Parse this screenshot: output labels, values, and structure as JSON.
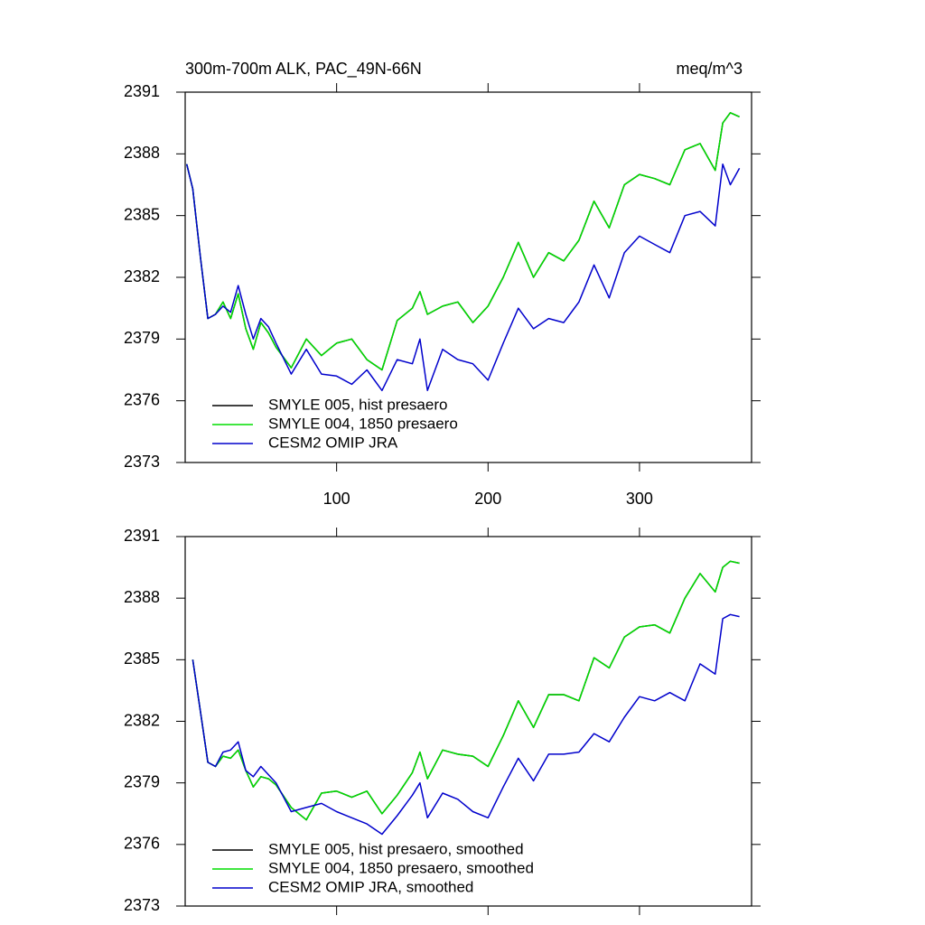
{
  "chart_data": [
    {
      "type": "line",
      "title": "300m-700m ALK, PAC_49N-66N",
      "units": "meq/m^3",
      "x": [
        1,
        5,
        10,
        15,
        20,
        25,
        30,
        35,
        40,
        45,
        50,
        55,
        60,
        70,
        80,
        90,
        100,
        110,
        120,
        130,
        140,
        150,
        155,
        160,
        170,
        180,
        190,
        200,
        210,
        220,
        230,
        240,
        250,
        260,
        270,
        280,
        290,
        300,
        310,
        320,
        330,
        340,
        350,
        355,
        360,
        366
      ],
      "series": [
        {
          "name": "SMYLE 005, hist presaero",
          "color": "#000000",
          "values": [
            2387.5,
            2386.3,
            2383,
            2380,
            2380.2,
            2380.8,
            2380.0,
            2381.2,
            2379.5,
            2378.5,
            2379.8,
            2379.3,
            2378.6,
            2377.6,
            2379.0,
            2378.2,
            2378.8,
            2379.0,
            2378.0,
            2377.5,
            2379.9,
            2380.5,
            2381.3,
            2380.2,
            2380.6,
            2380.8,
            2379.8,
            2380.6,
            2382.0,
            2383.7,
            2382.0,
            2383.2,
            2382.8,
            2383.8,
            2385.7,
            2384.4,
            2386.5,
            2387.0,
            2386.8,
            2386.5,
            2388.2,
            2388.5,
            2387.2,
            2389.5,
            2390.0,
            2389.8
          ]
        },
        {
          "name": "SMYLE 004, 1850 presaero",
          "color": "#00dd00",
          "values": [
            2387.5,
            2386.3,
            2383,
            2380,
            2380.2,
            2380.8,
            2380.0,
            2381.2,
            2379.5,
            2378.5,
            2379.8,
            2379.3,
            2378.6,
            2377.6,
            2379.0,
            2378.2,
            2378.8,
            2379.0,
            2378.0,
            2377.5,
            2379.9,
            2380.5,
            2381.3,
            2380.2,
            2380.6,
            2380.8,
            2379.8,
            2380.6,
            2382.0,
            2383.7,
            2382.0,
            2383.2,
            2382.8,
            2383.8,
            2385.7,
            2384.4,
            2386.5,
            2387.0,
            2386.8,
            2386.5,
            2388.2,
            2388.5,
            2387.2,
            2389.5,
            2390.0,
            2389.8
          ]
        },
        {
          "name": "CESM2 OMIP JRA",
          "color": "#0000cc",
          "values": [
            2387.5,
            2386.3,
            2383,
            2380,
            2380.2,
            2380.6,
            2380.3,
            2381.6,
            2380.2,
            2379.0,
            2380.0,
            2379.6,
            2378.8,
            2377.3,
            2378.5,
            2377.3,
            2377.2,
            2376.8,
            2377.5,
            2376.5,
            2378.0,
            2377.8,
            2379.0,
            2376.5,
            2378.5,
            2378.0,
            2377.8,
            2377.0,
            2378.8,
            2380.5,
            2379.5,
            2380.0,
            2379.8,
            2380.8,
            2382.6,
            2381.0,
            2383.2,
            2384.0,
            2383.6,
            2383.2,
            2385.0,
            2385.2,
            2384.5,
            2387.5,
            2386.5,
            2387.3
          ]
        }
      ],
      "xlim": [
        0,
        374
      ],
      "ylim": [
        2373,
        2391
      ],
      "xticks": [
        100,
        200,
        300
      ],
      "yticks": [
        2373,
        2376,
        2379,
        2382,
        2385,
        2388,
        2391
      ]
    },
    {
      "type": "line",
      "x": [
        5,
        10,
        15,
        20,
        25,
        30,
        35,
        40,
        45,
        50,
        55,
        60,
        70,
        80,
        90,
        100,
        110,
        120,
        130,
        140,
        150,
        155,
        160,
        170,
        180,
        190,
        200,
        210,
        220,
        230,
        240,
        250,
        260,
        270,
        280,
        290,
        300,
        310,
        320,
        330,
        340,
        350,
        355,
        360,
        366
      ],
      "series": [
        {
          "name": "SMYLE 005, hist presaero, smoothed",
          "color": "#000000",
          "values": [
            2385,
            2382.5,
            2380.0,
            2379.8,
            2380.3,
            2380.2,
            2380.6,
            2379.6,
            2378.8,
            2379.3,
            2379.2,
            2378.9,
            2377.8,
            2377.2,
            2378.5,
            2378.6,
            2378.3,
            2378.6,
            2377.5,
            2378.4,
            2379.5,
            2380.5,
            2379.2,
            2380.6,
            2380.4,
            2380.3,
            2379.8,
            2381.3,
            2383.0,
            2381.7,
            2383.3,
            2383.3,
            2383.0,
            2385.1,
            2384.6,
            2386.1,
            2386.6,
            2386.7,
            2386.3,
            2388.0,
            2389.2,
            2388.3,
            2389.5,
            2389.8,
            2389.7
          ]
        },
        {
          "name": "SMYLE 004, 1850 presaero, smoothed",
          "color": "#00dd00",
          "values": [
            2385,
            2382.5,
            2380.0,
            2379.8,
            2380.3,
            2380.2,
            2380.6,
            2379.6,
            2378.8,
            2379.3,
            2379.2,
            2378.9,
            2377.8,
            2377.2,
            2378.5,
            2378.6,
            2378.3,
            2378.6,
            2377.5,
            2378.4,
            2379.5,
            2380.5,
            2379.2,
            2380.6,
            2380.4,
            2380.3,
            2379.8,
            2381.3,
            2383.0,
            2381.7,
            2383.3,
            2383.3,
            2383.0,
            2385.1,
            2384.6,
            2386.1,
            2386.6,
            2386.7,
            2386.3,
            2388.0,
            2389.2,
            2388.3,
            2389.5,
            2389.8,
            2389.7
          ]
        },
        {
          "name": "CESM2 OMIP JRA, smoothed",
          "color": "#0000cc",
          "values": [
            2385,
            2382.5,
            2380.0,
            2379.8,
            2380.5,
            2380.6,
            2381.0,
            2379.6,
            2379.3,
            2379.8,
            2379.4,
            2379.0,
            2377.6,
            2377.8,
            2378.0,
            2377.6,
            2377.3,
            2377.0,
            2376.5,
            2377.4,
            2378.4,
            2379.0,
            2377.3,
            2378.5,
            2378.2,
            2377.6,
            2377.3,
            2378.8,
            2380.2,
            2379.1,
            2380.4,
            2380.4,
            2380.5,
            2381.4,
            2381.0,
            2382.2,
            2383.2,
            2383.0,
            2383.4,
            2383.0,
            2384.8,
            2384.3,
            2387.0,
            2387.2,
            2387.1
          ]
        }
      ],
      "xlim": [
        0,
        374
      ],
      "ylim": [
        2373,
        2391
      ],
      "xticks": [
        100,
        200,
        300
      ],
      "yticks": [
        2373,
        2376,
        2379,
        2382,
        2385,
        2388,
        2391
      ]
    }
  ]
}
